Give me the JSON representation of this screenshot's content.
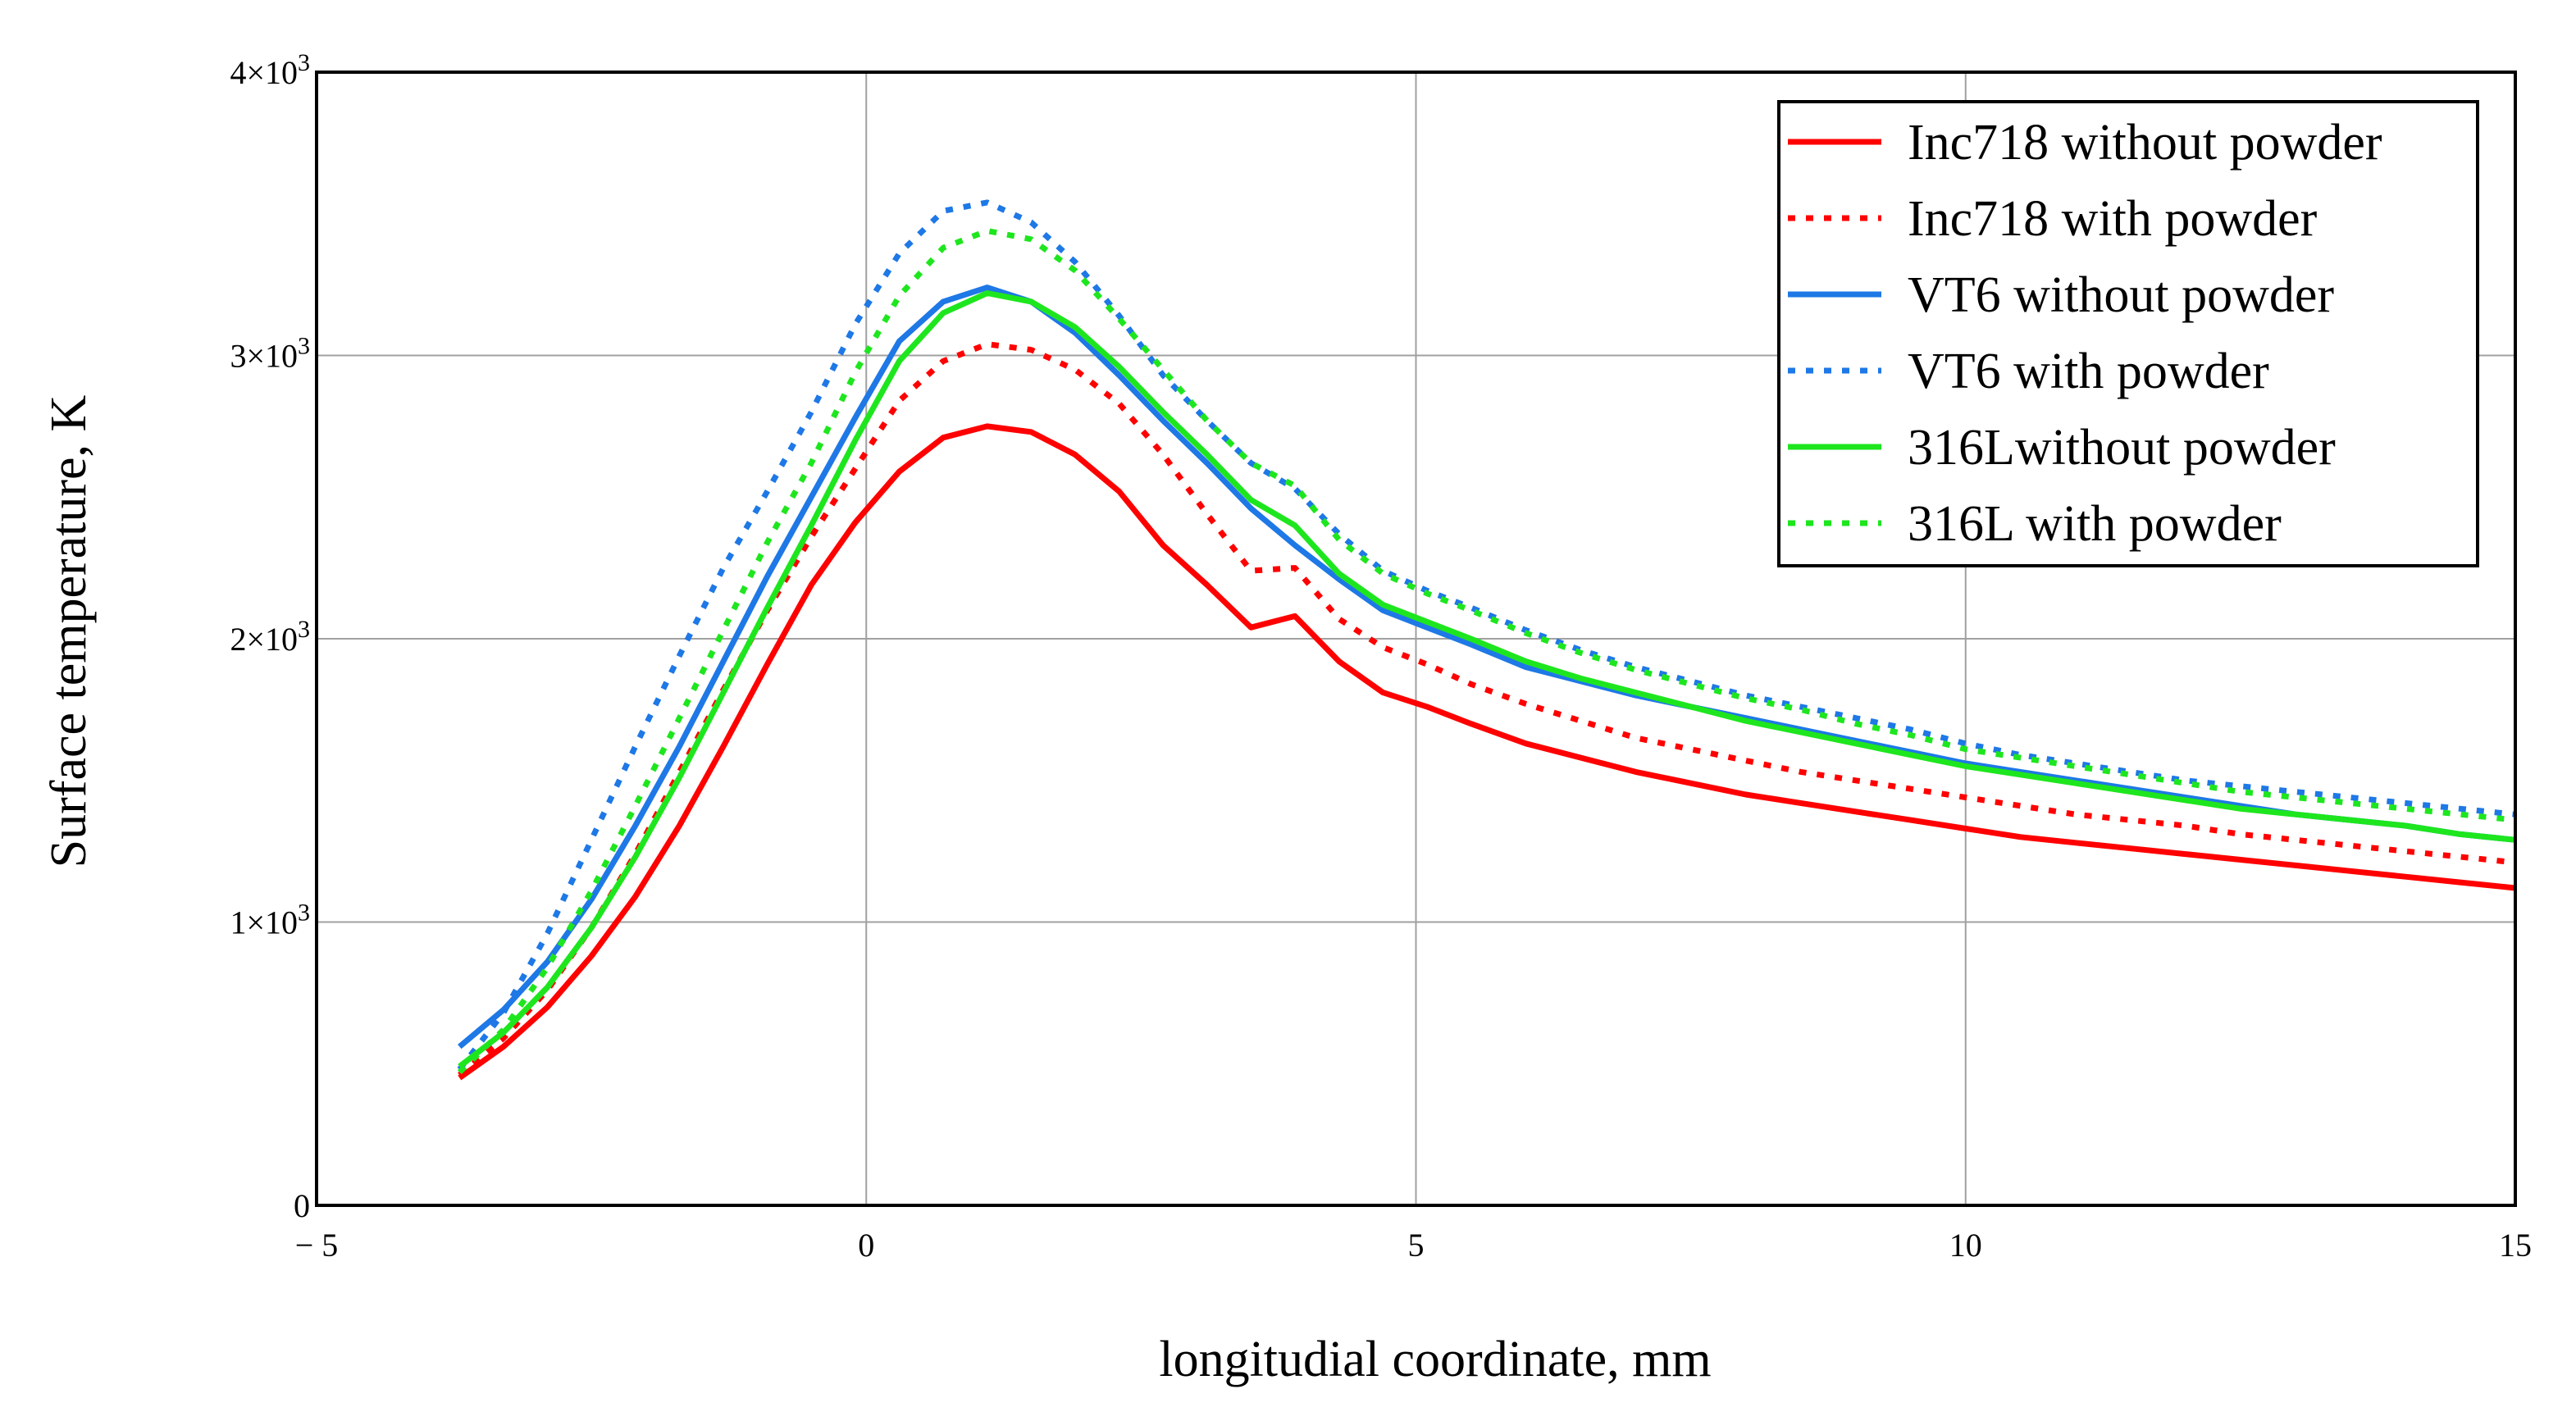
{
  "chart_data": {
    "type": "line",
    "title": "",
    "xlabel": "longitudial coordinate, mm",
    "ylabel": "Surface temperature, K",
    "xlim": [
      -5,
      15
    ],
    "ylim": [
      0,
      4000
    ],
    "grid": true,
    "legend_position": "top-right",
    "x_ticks": [
      {
        "value": -5,
        "label": "− 5"
      },
      {
        "value": 0,
        "label": "0"
      },
      {
        "value": 5,
        "label": "5"
      },
      {
        "value": 10,
        "label": "10"
      },
      {
        "value": 15,
        "label": "15"
      }
    ],
    "y_ticks": [
      {
        "value": 0,
        "mantissa": "0",
        "exponent": ""
      },
      {
        "value": 1000,
        "mantissa": "1×10",
        "exponent": "3"
      },
      {
        "value": 2000,
        "mantissa": "2×10",
        "exponent": "3"
      },
      {
        "value": 3000,
        "mantissa": "3×10",
        "exponent": "3"
      },
      {
        "value": 4000,
        "mantissa": "4×10",
        "exponent": "3"
      }
    ],
    "series": [
      {
        "name": "Inc718 without powder",
        "color": "#ff0000",
        "style": "solid",
        "x": [
          -3.7,
          -3.3,
          -2.9,
          -2.5,
          -2.1,
          -1.7,
          -1.3,
          -0.9,
          -0.5,
          -0.1,
          0.3,
          0.7,
          1.1,
          1.5,
          1.9,
          2.3,
          2.7,
          3.1,
          3.5,
          3.9,
          4.3,
          4.7,
          5.1,
          5.5,
          6.0,
          6.5,
          7.0,
          7.5,
          8.0,
          8.5,
          9.0,
          9.5,
          10.0,
          10.5,
          11.0,
          11.5,
          12.0,
          12.5,
          13.0,
          13.5,
          14.0,
          14.5,
          15.0
        ],
        "y": [
          450,
          560,
          700,
          880,
          1090,
          1340,
          1620,
          1910,
          2190,
          2410,
          2590,
          2710,
          2750,
          2730,
          2650,
          2520,
          2330,
          2190,
          2040,
          2080,
          1920,
          1810,
          1760,
          1700,
          1630,
          1580,
          1530,
          1490,
          1450,
          1420,
          1390,
          1360,
          1330,
          1300,
          1280,
          1260,
          1240,
          1220,
          1200,
          1180,
          1160,
          1140,
          1120
        ]
      },
      {
        "name": "Inc718 with powder",
        "color": "#ff0000",
        "style": "dotted",
        "x": [
          -3.7,
          -3.3,
          -2.9,
          -2.5,
          -2.1,
          -1.7,
          -1.3,
          -0.9,
          -0.5,
          -0.1,
          0.3,
          0.7,
          1.1,
          1.5,
          1.9,
          2.3,
          2.7,
          3.1,
          3.5,
          3.9,
          4.3,
          4.7,
          5.1,
          5.5,
          6.0,
          6.5,
          7.0,
          7.5,
          8.0,
          8.5,
          9.0,
          9.5,
          10.0,
          10.5,
          11.0,
          11.5,
          12.0,
          12.5,
          13.0,
          13.5,
          14.0,
          14.5,
          15.0
        ],
        "y": [
          460,
          590,
          760,
          980,
          1240,
          1530,
          1820,
          2100,
          2360,
          2600,
          2840,
          2980,
          3040,
          3020,
          2950,
          2830,
          2650,
          2440,
          2240,
          2250,
          2070,
          1970,
          1910,
          1840,
          1770,
          1710,
          1650,
          1610,
          1570,
          1530,
          1500,
          1470,
          1440,
          1410,
          1380,
          1360,
          1340,
          1310,
          1290,
          1270,
          1250,
          1230,
          1210
        ]
      },
      {
        "name": "VT6 without powder",
        "color": "#1e78e6",
        "style": "solid",
        "x": [
          -3.7,
          -3.3,
          -2.9,
          -2.5,
          -2.1,
          -1.7,
          -1.3,
          -0.9,
          -0.5,
          -0.1,
          0.3,
          0.7,
          1.1,
          1.5,
          1.9,
          2.3,
          2.7,
          3.1,
          3.5,
          3.9,
          4.3,
          4.7,
          5.1,
          5.5,
          6.0,
          6.5,
          7.0,
          7.5,
          8.0,
          8.5,
          9.0,
          9.5,
          10.0,
          10.5,
          11.0,
          11.5,
          12.0,
          12.5,
          13.0,
          13.5,
          14.0,
          14.5,
          15.0
        ],
        "y": [
          560,
          690,
          860,
          1080,
          1340,
          1620,
          1920,
          2220,
          2500,
          2780,
          3050,
          3190,
          3240,
          3190,
          3080,
          2930,
          2770,
          2620,
          2460,
          2330,
          2210,
          2100,
          2040,
          1980,
          1900,
          1850,
          1800,
          1760,
          1720,
          1680,
          1640,
          1600,
          1560,
          1530,
          1500,
          1470,
          1440,
          1410,
          1380,
          1360,
          1340,
          1310,
          1290
        ]
      },
      {
        "name": "VT6 with powder",
        "color": "#1e78e6",
        "style": "dotted",
        "x": [
          -3.7,
          -3.3,
          -2.9,
          -2.5,
          -2.1,
          -1.7,
          -1.3,
          -0.9,
          -0.5,
          -0.1,
          0.3,
          0.7,
          1.1,
          1.5,
          1.9,
          2.3,
          2.7,
          3.1,
          3.5,
          3.9,
          4.3,
          4.7,
          5.1,
          5.5,
          6.0,
          6.5,
          7.0,
          7.5,
          8.0,
          8.5,
          9.0,
          9.5,
          10.0,
          10.5,
          11.0,
          11.5,
          12.0,
          12.5,
          13.0,
          13.5,
          14.0,
          14.5,
          15.0
        ],
        "y": [
          480,
          680,
          960,
          1290,
          1620,
          1940,
          2250,
          2520,
          2800,
          3110,
          3360,
          3510,
          3540,
          3470,
          3330,
          3140,
          2930,
          2770,
          2620,
          2530,
          2370,
          2240,
          2170,
          2110,
          2030,
          1960,
          1900,
          1850,
          1800,
          1760,
          1720,
          1680,
          1630,
          1590,
          1560,
          1530,
          1500,
          1480,
          1460,
          1440,
          1420,
          1400,
          1380
        ]
      },
      {
        "name": "316Lwithout powder",
        "color": "#1ee61e",
        "style": "solid",
        "x": [
          -3.7,
          -3.3,
          -2.9,
          -2.5,
          -2.1,
          -1.7,
          -1.3,
          -0.9,
          -0.5,
          -0.1,
          0.3,
          0.7,
          1.1,
          1.5,
          1.9,
          2.3,
          2.7,
          3.1,
          3.5,
          3.9,
          4.3,
          4.7,
          5.1,
          5.5,
          6.0,
          6.5,
          7.0,
          7.5,
          8.0,
          8.5,
          9.0,
          9.5,
          10.0,
          10.5,
          11.0,
          11.5,
          12.0,
          12.5,
          13.0,
          13.5,
          14.0,
          14.5,
          15.0
        ],
        "y": [
          490,
          610,
          770,
          980,
          1230,
          1510,
          1810,
          2110,
          2400,
          2700,
          2980,
          3150,
          3220,
          3190,
          3100,
          2960,
          2800,
          2650,
          2490,
          2400,
          2230,
          2120,
          2060,
          2000,
          1920,
          1860,
          1810,
          1760,
          1710,
          1670,
          1630,
          1590,
          1550,
          1520,
          1490,
          1460,
          1430,
          1400,
          1380,
          1360,
          1340,
          1310,
          1290
        ]
      },
      {
        "name": "316L with powder",
        "color": "#1ee61e",
        "style": "dotted",
        "x": [
          -3.7,
          -3.3,
          -2.9,
          -2.5,
          -2.1,
          -1.7,
          -1.3,
          -0.9,
          -0.5,
          -0.1,
          0.3,
          0.7,
          1.1,
          1.5,
          1.9,
          2.3,
          2.7,
          3.1,
          3.5,
          3.9,
          4.3,
          4.7,
          5.1,
          5.5,
          6.0,
          6.5,
          7.0,
          7.5,
          8.0,
          8.5,
          9.0,
          9.5,
          10.0,
          10.5,
          11.0,
          11.5,
          12.0,
          12.5,
          13.0,
          13.5,
          14.0,
          14.5,
          15.0
        ],
        "y": [
          470,
          620,
          840,
          1110,
          1410,
          1720,
          2030,
          2340,
          2620,
          2940,
          3210,
          3380,
          3440,
          3410,
          3300,
          3130,
          2950,
          2770,
          2620,
          2540,
          2350,
          2230,
          2160,
          2100,
          2020,
          1950,
          1890,
          1840,
          1790,
          1750,
          1700,
          1660,
          1610,
          1580,
          1550,
          1520,
          1490,
          1460,
          1440,
          1420,
          1400,
          1380,
          1360
        ]
      }
    ]
  }
}
